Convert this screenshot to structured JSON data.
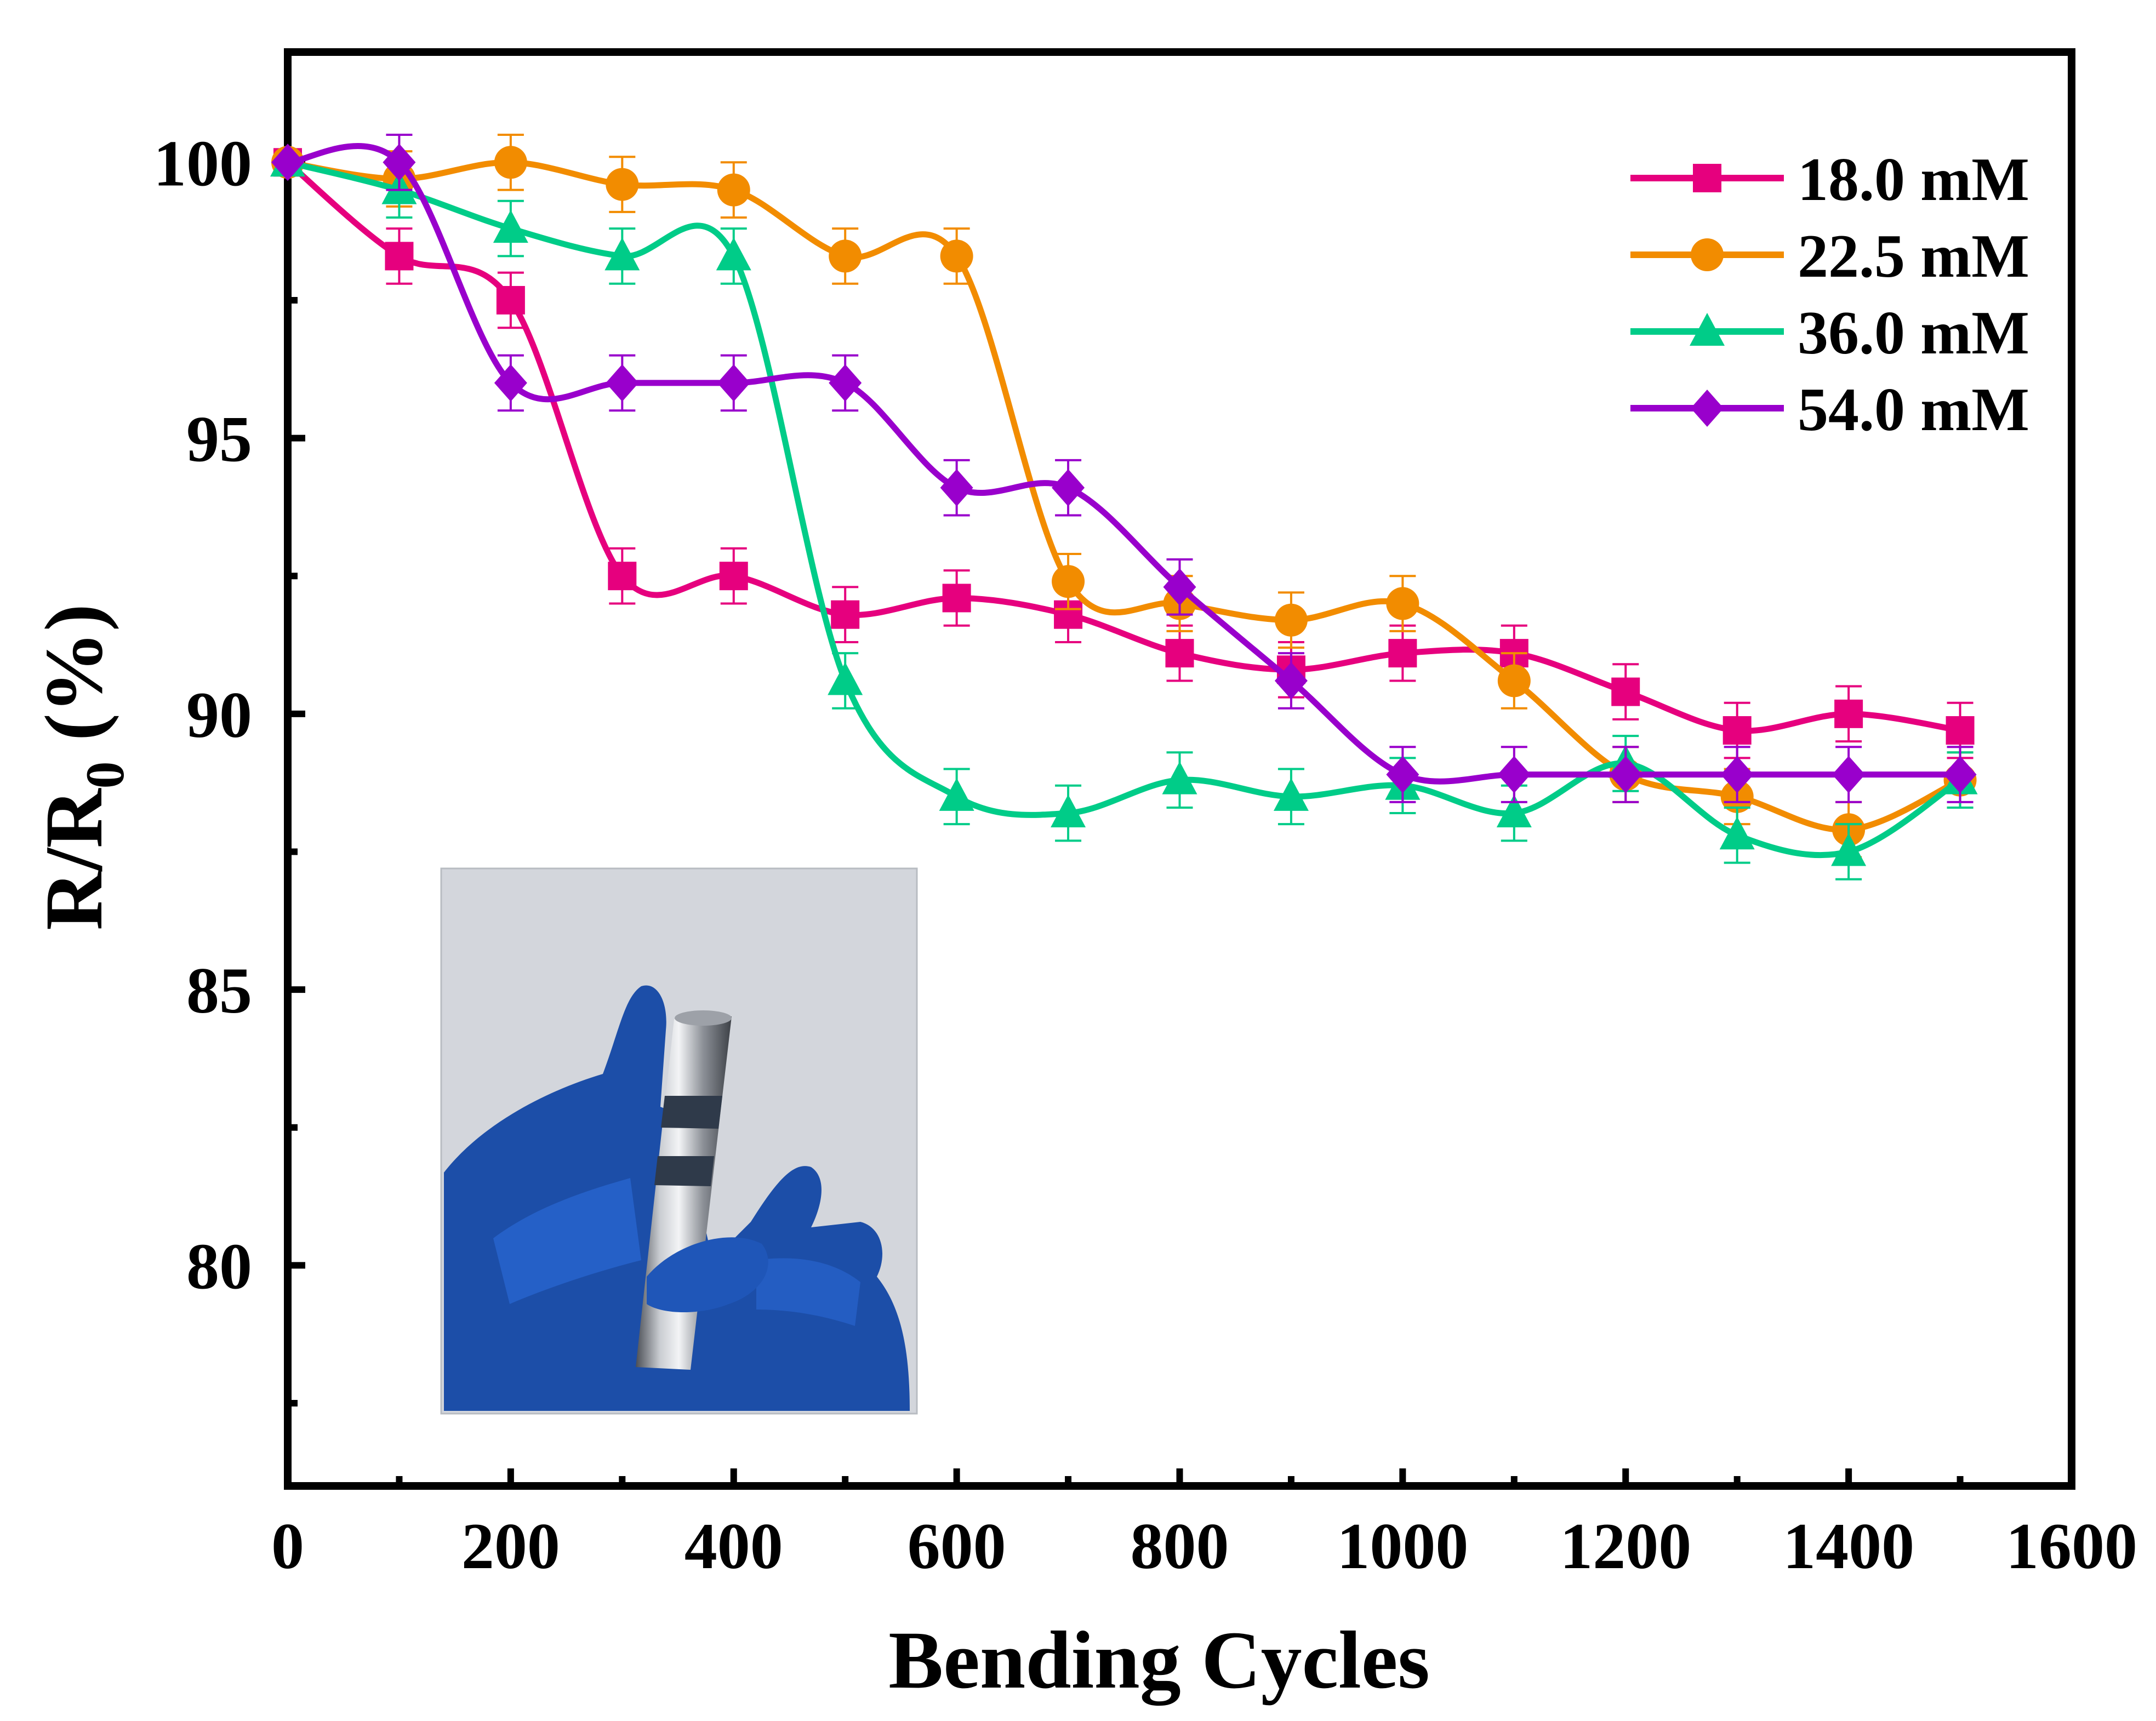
{
  "chart_data": {
    "type": "line",
    "title": "",
    "xlabel": "Bending Cycles",
    "ylabel": {
      "main": "R/R",
      "sub": "0",
      "unit": " (%)"
    },
    "xlim": [
      0,
      1600
    ],
    "ylim": [
      76,
      102
    ],
    "x_ticks": [
      0,
      200,
      400,
      600,
      800,
      1000,
      1200,
      1400,
      1600
    ],
    "x_tick_labels": [
      "0",
      "200",
      "400",
      "600",
      "800",
      "1000",
      "1200",
      "1400",
      "1600"
    ],
    "y_ticks": [
      80,
      85,
      90,
      95,
      100
    ],
    "y_tick_labels": [
      "80",
      "85",
      "90",
      "95",
      "100"
    ],
    "grid": false,
    "legend_position": "top-right",
    "x": [
      0,
      100,
      200,
      300,
      400,
      500,
      600,
      700,
      800,
      900,
      1000,
      1100,
      1200,
      1300,
      1400,
      1500
    ],
    "series": [
      {
        "name": "18.0 mM",
        "color": "#e6007e",
        "marker": "square",
        "values": [
          100,
          98.3,
          97.5,
          92.5,
          92.5,
          91.8,
          92.1,
          91.8,
          91.1,
          90.8,
          91.1,
          91.1,
          90.4,
          89.7,
          90.0,
          89.7
        ],
        "errors": [
          0,
          0.5,
          0.5,
          0.5,
          0.5,
          0.5,
          0.5,
          0.5,
          0.5,
          0.5,
          0.5,
          0.5,
          0.5,
          0.5,
          0.5,
          0.5
        ]
      },
      {
        "name": "22.5 mM",
        "color": "#f28c00",
        "marker": "circle",
        "values": [
          100,
          99.7,
          100,
          99.6,
          99.5,
          98.3,
          98.3,
          92.4,
          92.0,
          91.7,
          92.0,
          90.6,
          88.9,
          88.5,
          87.9,
          88.8
        ],
        "errors": [
          0,
          0.5,
          0.5,
          0.5,
          0.5,
          0.5,
          0.5,
          0.5,
          0.5,
          0.5,
          0.5,
          0.5,
          0.5,
          0.5,
          0.5,
          0.5
        ]
      },
      {
        "name": "36.0 mM",
        "color": "#00cc88",
        "marker": "triangle",
        "values": [
          100,
          99.5,
          98.8,
          98.3,
          98.3,
          90.6,
          88.5,
          88.2,
          88.8,
          88.5,
          88.7,
          88.2,
          89.1,
          87.8,
          87.5,
          88.8
        ],
        "errors": [
          0,
          0.5,
          0.5,
          0.5,
          0.5,
          0.5,
          0.5,
          0.5,
          0.5,
          0.5,
          0.5,
          0.5,
          0.5,
          0.5,
          0.5,
          0.5
        ]
      },
      {
        "name": "54.0 mM",
        "color": "#9900cc",
        "marker": "diamond",
        "values": [
          100,
          100,
          96.0,
          96.0,
          96.0,
          96.0,
          94.1,
          94.1,
          92.3,
          90.6,
          88.9,
          88.9,
          88.9,
          88.9,
          88.9,
          88.9
        ],
        "errors": [
          0,
          0.5,
          0.5,
          0.5,
          0.5,
          0.5,
          0.5,
          0.5,
          0.5,
          0.5,
          0.5,
          0.5,
          0.5,
          0.5,
          0.5,
          0.5
        ]
      }
    ],
    "inset": {
      "description": "photo of a blue-gloved hand holding a metal rod with a dark band"
    }
  }
}
